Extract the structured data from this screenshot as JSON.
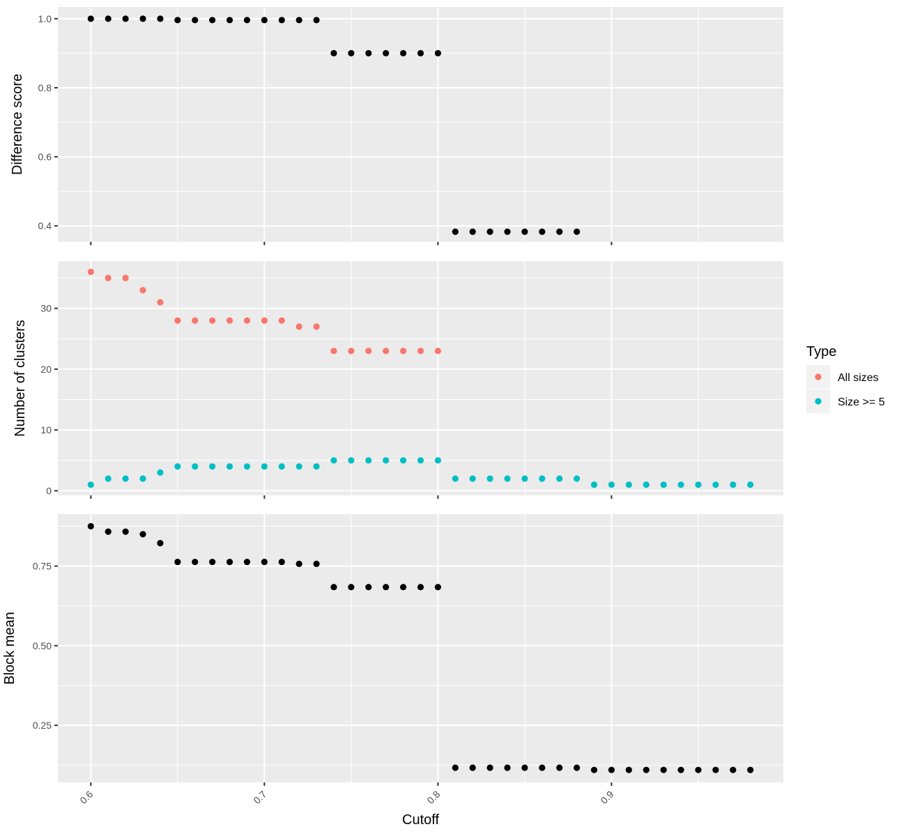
{
  "chart_data": [
    {
      "type": "scatter",
      "ylabel": "Difference score",
      "xlim": [
        0.581,
        0.999
      ],
      "ylim": [
        0.354,
        1.034
      ],
      "yticks": [
        0.4,
        0.6,
        0.8,
        1.0
      ],
      "ytick_labels": [
        "0.4",
        "0.6",
        "0.8",
        "1.0"
      ],
      "series": [
        {
          "color": "#000000",
          "x": [
            0.6,
            0.61,
            0.62,
            0.63,
            0.64,
            0.65,
            0.66,
            0.67,
            0.68,
            0.69,
            0.7,
            0.71,
            0.72,
            0.73,
            0.74,
            0.75,
            0.76,
            0.77,
            0.78,
            0.79,
            0.8,
            0.81,
            0.82,
            0.83,
            0.84,
            0.85,
            0.86,
            0.87,
            0.88
          ],
          "y": [
            1.0,
            1.0,
            1.0,
            1.0,
            1.0,
            0.996,
            0.996,
            0.996,
            0.996,
            0.996,
            0.996,
            0.996,
            0.996,
            0.996,
            0.9,
            0.9,
            0.9,
            0.9,
            0.9,
            0.9,
            0.9,
            0.383,
            0.383,
            0.383,
            0.383,
            0.383,
            0.383,
            0.383,
            0.383
          ]
        }
      ]
    },
    {
      "type": "scatter",
      "ylabel": "Number of clusters",
      "xlim": [
        0.581,
        0.999
      ],
      "ylim": [
        -0.75,
        37.75
      ],
      "yticks": [
        0,
        10,
        20,
        30
      ],
      "ytick_labels": [
        "0",
        "10",
        "20",
        "30"
      ],
      "legend": {
        "title": "Type",
        "position": "right"
      },
      "series": [
        {
          "name": "All sizes",
          "color": "#F8766D",
          "x": [
            0.6,
            0.61,
            0.62,
            0.63,
            0.64,
            0.65,
            0.66,
            0.67,
            0.68,
            0.69,
            0.7,
            0.71,
            0.72,
            0.73,
            0.74,
            0.75,
            0.76,
            0.77,
            0.78,
            0.79,
            0.8
          ],
          "y": [
            36,
            35,
            35,
            33,
            31,
            28,
            28,
            28,
            28,
            28,
            28,
            28,
            27,
            27,
            23,
            23,
            23,
            23,
            23,
            23,
            23
          ]
        },
        {
          "name": "Size >= 5",
          "color": "#00BFC4",
          "x": [
            0.6,
            0.61,
            0.62,
            0.63,
            0.64,
            0.65,
            0.66,
            0.67,
            0.68,
            0.69,
            0.7,
            0.71,
            0.72,
            0.73,
            0.74,
            0.75,
            0.76,
            0.77,
            0.78,
            0.79,
            0.8,
            0.81,
            0.82,
            0.83,
            0.84,
            0.85,
            0.86,
            0.87,
            0.88,
            0.89,
            0.9,
            0.91,
            0.92,
            0.93,
            0.94,
            0.95,
            0.96,
            0.97,
            0.98
          ],
          "y": [
            1,
            2,
            2,
            2,
            3,
            4,
            4,
            4,
            4,
            4,
            4,
            4,
            4,
            4,
            5,
            5,
            5,
            5,
            5,
            5,
            5,
            2,
            2,
            2,
            2,
            2,
            2,
            2,
            2,
            1,
            1,
            1,
            1,
            1,
            1,
            1,
            1,
            1,
            1
          ]
        }
      ]
    },
    {
      "type": "scatter",
      "ylabel": "Block mean",
      "xlabel": "Cutoff",
      "xlim": [
        0.581,
        0.999
      ],
      "ylim": [
        0.071,
        0.913
      ],
      "yticks": [
        0.25,
        0.5,
        0.75
      ],
      "ytick_labels": [
        "0.25",
        "0.50",
        "0.75"
      ],
      "xticks": [
        0.6,
        0.7,
        0.8,
        0.9
      ],
      "xtick_labels": [
        "0.6",
        "0.7",
        "0.8",
        "0.9"
      ],
      "series": [
        {
          "color": "#000000",
          "x": [
            0.6,
            0.61,
            0.62,
            0.63,
            0.64,
            0.65,
            0.66,
            0.67,
            0.68,
            0.69,
            0.7,
            0.71,
            0.72,
            0.73,
            0.74,
            0.75,
            0.76,
            0.77,
            0.78,
            0.79,
            0.8,
            0.81,
            0.82,
            0.83,
            0.84,
            0.85,
            0.86,
            0.87,
            0.88,
            0.89,
            0.9,
            0.91,
            0.92,
            0.93,
            0.94,
            0.95,
            0.96,
            0.97,
            0.98
          ],
          "y": [
            0.875,
            0.858,
            0.858,
            0.85,
            0.822,
            0.763,
            0.763,
            0.763,
            0.763,
            0.763,
            0.763,
            0.763,
            0.757,
            0.757,
            0.684,
            0.684,
            0.684,
            0.684,
            0.684,
            0.684,
            0.684,
            0.117,
            0.117,
            0.117,
            0.117,
            0.117,
            0.117,
            0.117,
            0.117,
            0.11,
            0.11,
            0.11,
            0.11,
            0.11,
            0.11,
            0.11,
            0.11,
            0.11,
            0.11
          ]
        }
      ]
    }
  ]
}
